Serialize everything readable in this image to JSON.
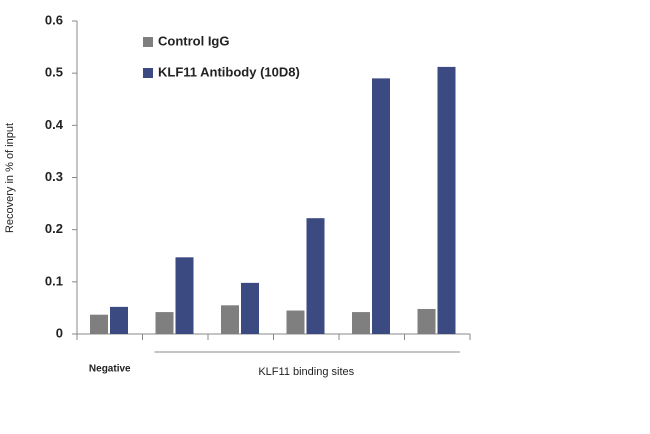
{
  "chart_data": {
    "type": "bar",
    "y_label": "Recovery in % of input",
    "categories": [
      "Negative",
      null,
      null,
      null,
      null,
      null
    ],
    "group_label": "KLF11 binding sites",
    "series": [
      {
        "name": "Control IgG",
        "color": "#7f7f7f",
        "values": [
          0.037,
          0.042,
          0.055,
          0.045,
          0.042,
          0.048
        ]
      },
      {
        "name": "KLF11 Antibody (10D8)",
        "color": "#3b4a80",
        "values": [
          0.052,
          0.147,
          0.098,
          0.222,
          0.49,
          0.512
        ]
      }
    ],
    "ylim": [
      0,
      0.6
    ],
    "yticks": [
      0,
      0.1,
      0.2,
      0.3,
      0.4,
      0.5,
      0.6
    ],
    "grid": false,
    "legend": "top-left"
  }
}
